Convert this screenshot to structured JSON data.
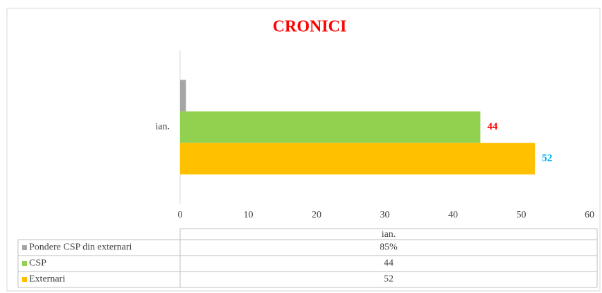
{
  "chart_data": {
    "type": "hbar",
    "title": "CRONICI",
    "categories": [
      "ian."
    ],
    "series": [
      {
        "name": "Pondere CSP din externari",
        "color": "#a5a5a5",
        "values": [
          0.85
        ],
        "value_labels": [
          "85%"
        ]
      },
      {
        "name": "CSP",
        "color": "#92d050",
        "values": [
          44
        ],
        "label_color": "#ff0000"
      },
      {
        "name": "Externari",
        "color": "#ffc000",
        "values": [
          52
        ],
        "label_color": "#00b0f0"
      }
    ],
    "xlim": [
      0,
      60
    ],
    "xticks": [
      0,
      10,
      20,
      30,
      40,
      50,
      60
    ],
    "data_table": true
  }
}
